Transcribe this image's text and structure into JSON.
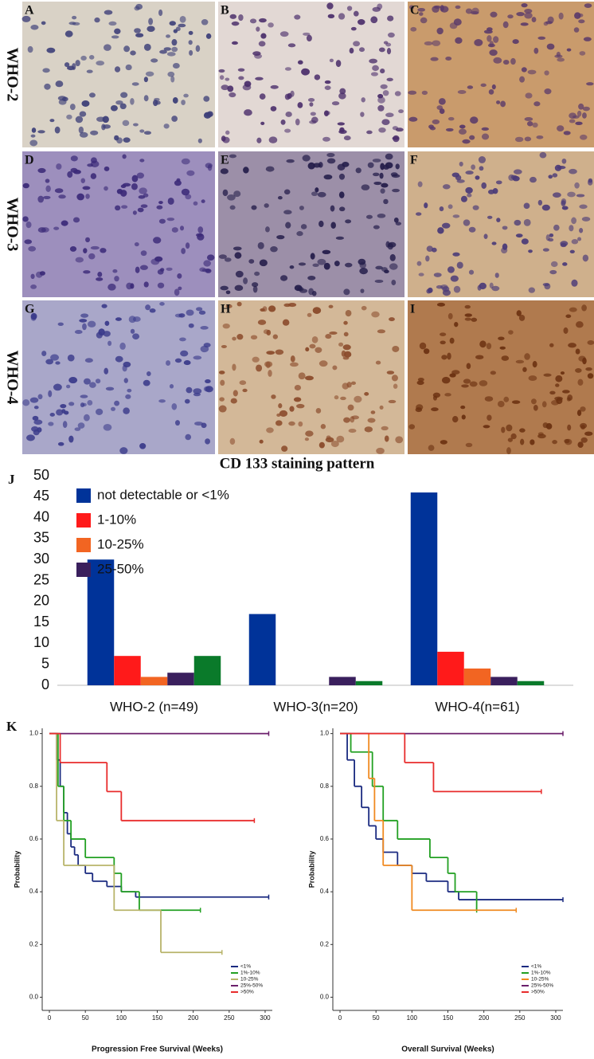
{
  "micrographs": {
    "panel_labels": [
      "A",
      "B",
      "C",
      "D",
      "E",
      "F",
      "G",
      "H",
      "I"
    ],
    "row_labels": [
      "WHO-2",
      "WHO-3",
      "WHO-4"
    ]
  },
  "chart_data": [
    {
      "type": "bar",
      "panel_label": "J",
      "title": "CD 133 staining pattern",
      "categories": [
        "WHO-2 (n=49)",
        "WHO-3(n=20)",
        "WHO-4(n=61)"
      ],
      "series": [
        {
          "name": "not detectable or <1%",
          "color": "#003399",
          "values": [
            30,
            17,
            46
          ]
        },
        {
          "name": "1-10%",
          "color": "#ff1a1a",
          "values": [
            7,
            0,
            8
          ]
        },
        {
          "name": "10-25%",
          "color": "#f26522",
          "values": [
            2,
            0,
            4
          ]
        },
        {
          "name": "25-50%",
          "color": "#3a1f5d",
          "values": [
            3,
            2,
            2
          ]
        },
        {
          "color": "#0a7a2a",
          "values": [
            7,
            1,
            1
          ]
        }
      ],
      "ylim": [
        0,
        50
      ],
      "yticks": [
        0,
        5,
        10,
        15,
        20,
        25,
        30,
        35,
        40,
        45,
        50
      ],
      "grid": false,
      "legend": "upper left"
    },
    {
      "type": "step",
      "panel_label": "K",
      "x_label": "Progression Free Survival (Weeks)",
      "y_label": "Probability",
      "xlim": [
        -10,
        310
      ],
      "xticks": [
        0,
        50,
        100,
        150,
        200,
        250,
        300
      ],
      "ylim": [
        -0.05,
        1.02
      ],
      "yticks": [
        {
          "value": 0,
          "label": "0.0"
        },
        0.2,
        0.4,
        0.6,
        0.8,
        {
          "value": 1,
          "label": "1.0"
        }
      ],
      "legend": "lower right",
      "series": [
        {
          "name": "<1%",
          "color": "#1a2a80",
          "x": [
            0,
            10,
            15,
            20,
            25,
            30,
            35,
            40,
            50,
            60,
            80,
            100,
            120,
            305
          ],
          "values": [
            1,
            0.9,
            0.8,
            0.7,
            0.62,
            0.57,
            0.54,
            0.5,
            0.47,
            0.44,
            0.42,
            0.4,
            0.38,
            0.38
          ]
        },
        {
          "name": "1%-10%",
          "color": "#22a022",
          "x": [
            0,
            12,
            20,
            30,
            50,
            90,
            100,
            125,
            210
          ],
          "values": [
            1,
            0.8,
            0.67,
            0.6,
            0.53,
            0.47,
            0.4,
            0.33,
            0.33
          ]
        },
        {
          "name": "10-25%",
          "color": "#b8b46a",
          "x": [
            0,
            10,
            20,
            90,
            155,
            240
          ],
          "values": [
            1,
            0.67,
            0.5,
            0.33,
            0.17,
            0.17
          ]
        },
        {
          "name": "25%-50%",
          "color": "#6b1f6b",
          "x": [
            0,
            305
          ],
          "values": [
            1,
            1
          ]
        },
        {
          "name": ">50%",
          "color": "#e82c2c",
          "x": [
            0,
            15,
            80,
            100,
            285
          ],
          "values": [
            1,
            0.89,
            0.78,
            0.67,
            0.67
          ]
        }
      ]
    },
    {
      "type": "step",
      "x_label": "Overall Survival (Weeks)",
      "y_label": "Probability",
      "xlim": [
        -10,
        310
      ],
      "xticks": [
        0,
        50,
        100,
        150,
        200,
        250,
        300
      ],
      "ylim": [
        -0.05,
        1.02
      ],
      "yticks": [
        {
          "value": 0,
          "label": "0.0"
        },
        0.2,
        0.4,
        0.6,
        0.8,
        {
          "value": 1,
          "label": "1.0"
        }
      ],
      "legend": "lower right",
      "series": [
        {
          "name": "<1%",
          "color": "#1a2a80",
          "x": [
            0,
            10,
            20,
            30,
            40,
            50,
            60,
            80,
            100,
            120,
            150,
            165,
            310
          ],
          "values": [
            1,
            0.9,
            0.8,
            0.72,
            0.65,
            0.6,
            0.55,
            0.5,
            0.47,
            0.44,
            0.4,
            0.37,
            0.37
          ]
        },
        {
          "name": "1%-10%",
          "color": "#22a022",
          "x": [
            0,
            15,
            45,
            60,
            80,
            125,
            150,
            160,
            190
          ],
          "values": [
            1,
            0.93,
            0.8,
            0.67,
            0.6,
            0.53,
            0.47,
            0.4,
            0.33
          ]
        },
        {
          "name": "10-25%",
          "color": "#f08a20",
          "x": [
            0,
            40,
            48,
            60,
            100,
            245
          ],
          "values": [
            1,
            0.83,
            0.67,
            0.5,
            0.33,
            0.33
          ]
        },
        {
          "name": "25%-50%",
          "color": "#6b1f6b",
          "x": [
            0,
            310
          ],
          "values": [
            1,
            1
          ]
        },
        {
          "name": ">50%",
          "color": "#e82c2c",
          "x": [
            0,
            90,
            130,
            280
          ],
          "values": [
            1,
            0.89,
            0.78,
            0.78
          ]
        }
      ]
    }
  ]
}
